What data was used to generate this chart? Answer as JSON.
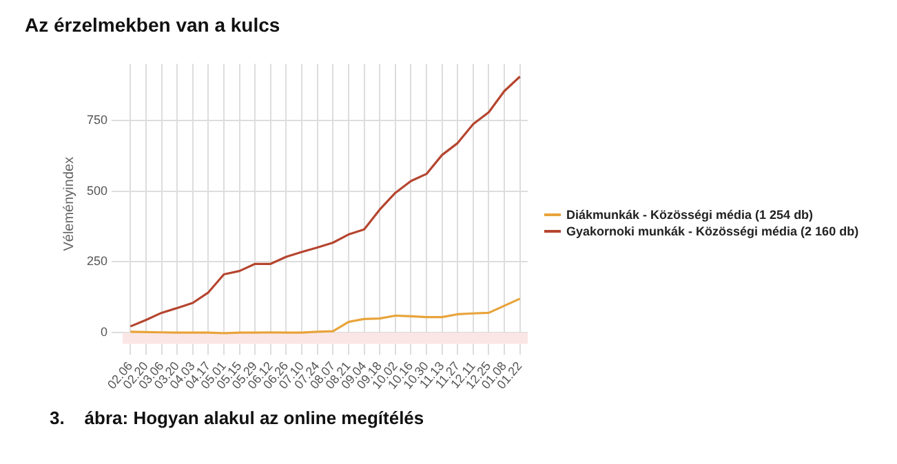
{
  "chart_data": {
    "type": "line",
    "title": "Az érzelmekben van a kulcs",
    "ylabel": "Véleményindex",
    "annotations": [
      "3.    ábra: Hogyan alakul az online megítélés"
    ],
    "categories": [
      "02.06",
      "02.20",
      "03.06",
      "03.20",
      "04.03",
      "04.17",
      "05.01",
      "05.15",
      "05.29",
      "06.12",
      "06.26",
      "07.10",
      "07.24",
      "08.07",
      "08.21",
      "09.04",
      "09.18",
      "10.02",
      "10.16",
      "10.30",
      "11.13",
      "11.27",
      "12.11",
      "12.25",
      "01.08",
      "01.22"
    ],
    "series": [
      {
        "name": "Diákmunkák - Közösségi média (1 254 db)",
        "color": "#e8a33a",
        "values": [
          3,
          2,
          1,
          0,
          0,
          0,
          -2,
          0,
          0,
          1,
          0,
          0,
          3,
          5,
          38,
          48,
          50,
          60,
          58,
          55,
          55,
          65,
          68,
          70,
          95,
          120
        ]
      },
      {
        "name": "Gyakornoki munkák - Közösségi média (2 160 db)",
        "color": "#b5452f",
        "values": [
          22,
          45,
          70,
          87,
          105,
          142,
          206,
          218,
          243,
          243,
          268,
          285,
          301,
          318,
          347,
          365,
          435,
          494,
          536,
          561,
          628,
          670,
          737,
          779,
          854,
          905
        ]
      }
    ],
    "ylim": [
      -40,
      950
    ],
    "yticks": [
      0,
      250,
      500,
      750
    ],
    "bands": [
      {
        "axis": "y",
        "from": -40,
        "to": 0,
        "color": "#fbe6e6"
      }
    ],
    "grid": true,
    "legend": "right",
    "marker": "none",
    "line_style": "solid"
  }
}
